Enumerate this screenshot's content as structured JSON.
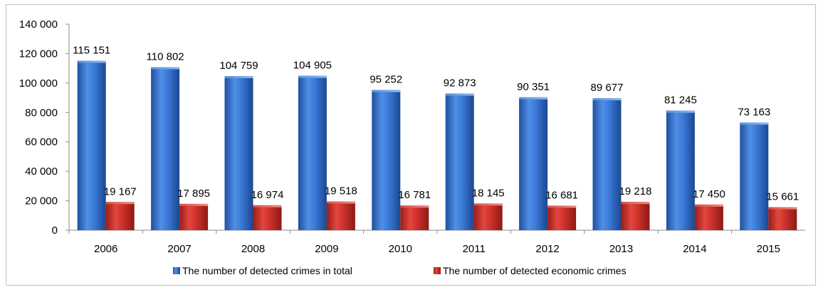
{
  "chart_data": {
    "type": "bar",
    "title": "",
    "xlabel": "",
    "ylabel": "",
    "categories": [
      "2006",
      "2007",
      "2008",
      "2009",
      "2010",
      "2011",
      "2012",
      "2013",
      "2014",
      "2015"
    ],
    "series": [
      {
        "name": "The number of detected crimes in total",
        "color": "#2f6fc8",
        "values": [
          115151,
          110802,
          104759,
          104905,
          95252,
          92873,
          90351,
          89677,
          81245,
          73163
        ],
        "labels": [
          "115 151",
          "110 802",
          "104 759",
          "104 905",
          "95 252",
          "92 873",
          "90 351",
          "89 677",
          "81 245",
          "73 163"
        ]
      },
      {
        "name": "The number of detected economic crimes",
        "color": "#c8302a",
        "values": [
          19167,
          17895,
          16974,
          19518,
          16781,
          18145,
          16681,
          19218,
          17450,
          15661
        ],
        "labels": [
          "19 167",
          "17 895",
          "16 974",
          "19 518",
          "16 781",
          "18 145",
          "16 681",
          "19 218",
          "17 450",
          "15 661"
        ]
      }
    ],
    "ylim": [
      0,
      140000
    ],
    "yticks": [
      0,
      20000,
      40000,
      60000,
      80000,
      100000,
      120000,
      140000
    ],
    "ytick_labels": [
      "0",
      "20 000",
      "40 000",
      "60 000",
      "80 000",
      "100 000",
      "120 000",
      "140 000"
    ],
    "grid": false,
    "legend_position": "bottom",
    "style": "3d-cylinder-gradient"
  }
}
